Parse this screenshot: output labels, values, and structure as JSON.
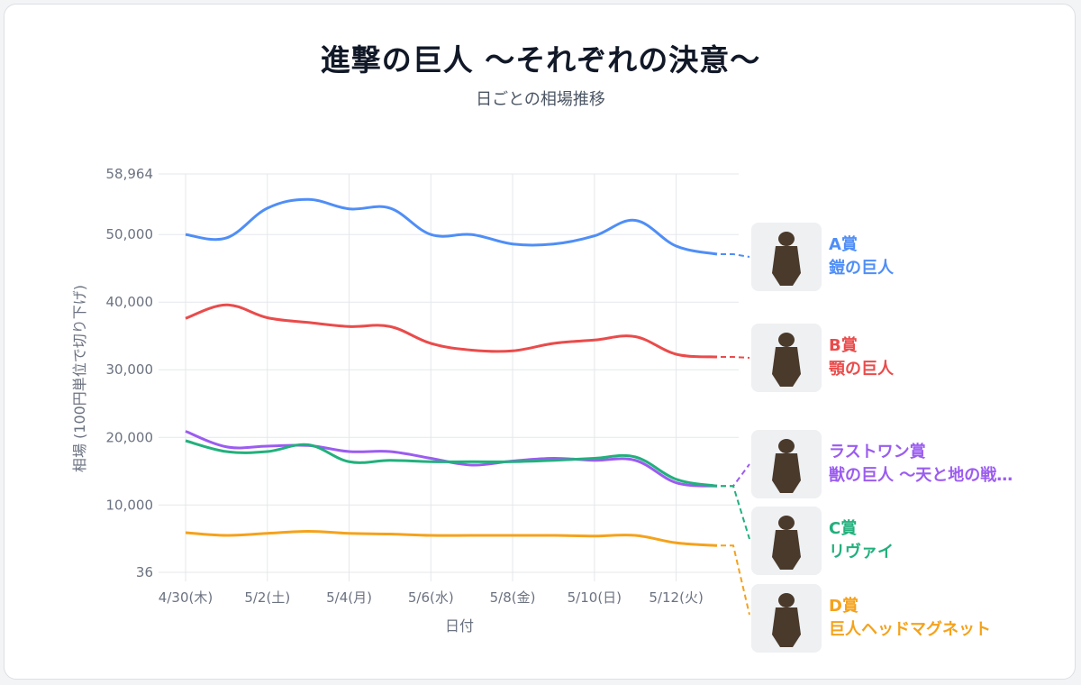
{
  "title": "進撃の巨人 ～それぞれの決意～",
  "subtitle": "日ごとの相場推移",
  "chart_data": {
    "type": "line",
    "x": [
      "4/30(木)",
      "5/1",
      "5/2(土)",
      "5/3",
      "5/4(月)",
      "5/5",
      "5/6(水)",
      "5/7",
      "5/8(金)",
      "5/9",
      "5/10(日)",
      "5/11",
      "5/12(火)",
      "5/13"
    ],
    "x_tick_labels": [
      "4/30(木)",
      "5/2(土)",
      "5/4(月)",
      "5/6(水)",
      "5/8(金)",
      "5/10(日)",
      "5/12(火)"
    ],
    "y_tick_labels": [
      "58,964",
      "50,000",
      "40,000",
      "30,000",
      "20,000",
      "10,000",
      "36"
    ],
    "y_ticks": [
      58964,
      50000,
      40000,
      30000,
      20000,
      10000,
      36
    ],
    "ylim": [
      36,
      58964
    ],
    "xlabel": "日付",
    "ylabel": "相場 (100円単位で切り下げ)",
    "grid": true,
    "legend": "right",
    "series": [
      {
        "name": "A賞 鎧の巨人",
        "color": "#4f8ef7",
        "values": [
          50000,
          49500,
          53900,
          55200,
          53800,
          53900,
          50000,
          50000,
          48600,
          48600,
          49800,
          52100,
          48300,
          47100
        ]
      },
      {
        "name": "B賞 顎の巨人",
        "color": "#ea4b4b",
        "values": [
          37600,
          39600,
          37700,
          37000,
          36400,
          36400,
          33900,
          32900,
          32800,
          33900,
          34400,
          34900,
          32300,
          31900
        ]
      },
      {
        "name": "ラストワン賞 獣の巨人 ～天と地の戦…",
        "color": "#9b5cf0",
        "values": [
          20900,
          18600,
          18700,
          18800,
          17900,
          17900,
          16900,
          15900,
          16500,
          16900,
          16600,
          16600,
          13300,
          12800
        ]
      },
      {
        "name": "C賞 リヴァイ",
        "color": "#22b07d",
        "values": [
          19500,
          17900,
          17900,
          18900,
          16400,
          16600,
          16400,
          16400,
          16400,
          16600,
          16900,
          17100,
          13800,
          12800
        ]
      },
      {
        "name": "D賞 巨人ヘッドマグネット",
        "color": "#f5a21b",
        "values": [
          5900,
          5500,
          5800,
          6100,
          5800,
          5700,
          5500,
          5500,
          5500,
          5500,
          5400,
          5500,
          4400,
          4000
        ]
      }
    ]
  },
  "prizes": [
    {
      "grade": "A賞",
      "name": "鎧の巨人",
      "color": "#4f8ef7",
      "icon": "armored-titan-figure-icon"
    },
    {
      "grade": "B賞",
      "name": "顎の巨人",
      "color": "#ea4b4b",
      "icon": "jaw-titan-figure-icon"
    },
    {
      "grade": "ラストワン賞",
      "name": "獣の巨人 ～天と地の戦…",
      "color": "#9b5cf0",
      "icon": "beast-titan-figure-icon"
    },
    {
      "grade": "C賞",
      "name": "リヴァイ",
      "color": "#22b07d",
      "icon": "levi-figure-icon"
    },
    {
      "grade": "D賞",
      "name": "巨人ヘッドマグネット",
      "color": "#f5a21b",
      "icon": "titan-head-magnet-icon"
    }
  ]
}
